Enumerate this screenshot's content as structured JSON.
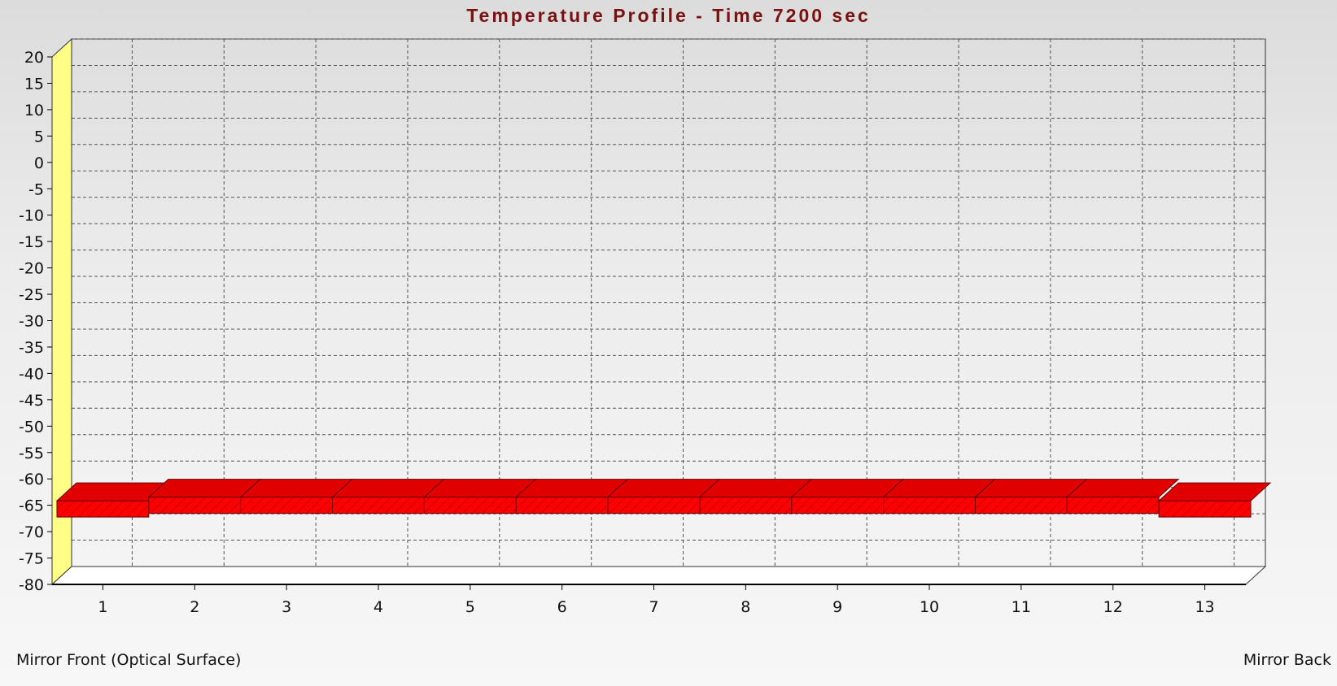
{
  "chart_data": {
    "type": "bar",
    "title": "Temperature Profile - Time 7200 sec",
    "xlabel": "",
    "ylabel": "",
    "categories": [
      "1",
      "2",
      "3",
      "4",
      "5",
      "6",
      "7",
      "8",
      "9",
      "10",
      "11",
      "12",
      "13"
    ],
    "x_edge_labels": {
      "left": "Mirror Front (Optical Surface)",
      "right": "Mirror Back"
    },
    "ylim": [
      -80,
      20
    ],
    "ytick_step": 5,
    "grid": true,
    "series": [
      {
        "values": [
          -66,
          -65.3,
          -65.3,
          -65.3,
          -65.3,
          -65.3,
          -65.3,
          -65.3,
          -65.3,
          -65.3,
          -65.3,
          -65.3,
          -66
        ]
      }
    ],
    "colors": {
      "bar": "#ff0000",
      "bar_top": "#e00000",
      "wall": "#ffff88",
      "floor": "#ffffff",
      "title": "#7a1010",
      "grid": "#555555"
    }
  }
}
